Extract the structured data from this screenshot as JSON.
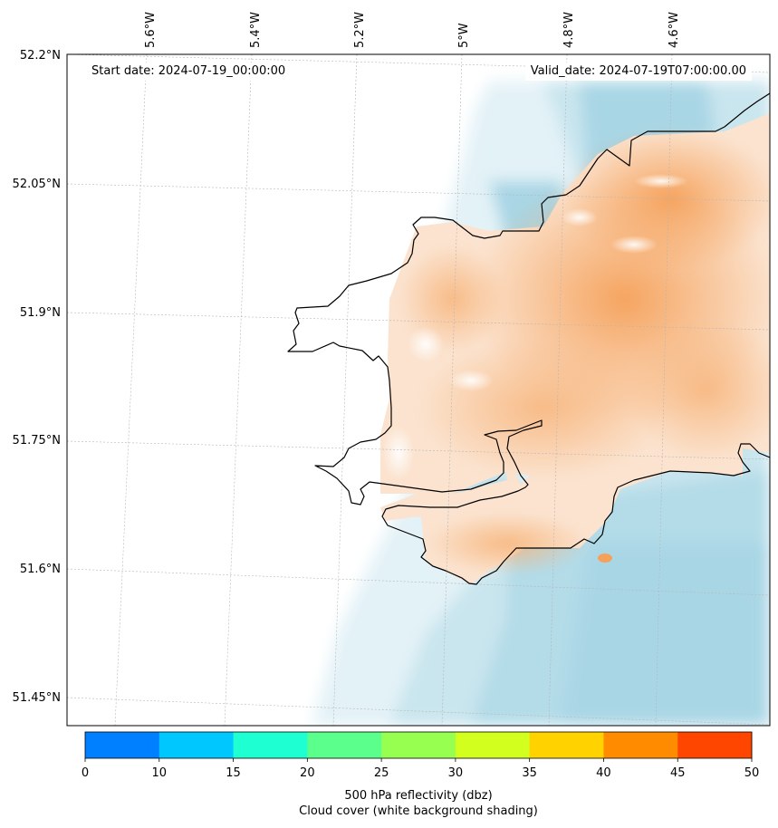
{
  "header": {
    "start_date": "Start date: 2024-07-19_00:00:00",
    "valid_date": "Valid_date: 2024-07-19T07:00:00.00"
  },
  "axes": {
    "lon_labels": [
      "5.6°W",
      "5.4°W",
      "5.2°W",
      "5°W",
      "4.8°W",
      "4.6°W"
    ],
    "lat_labels": [
      "52.2°N",
      "52.05°N",
      "51.9°N",
      "51.75°N",
      "51.6°N",
      "51.45°N"
    ]
  },
  "colorbar": {
    "ticks": [
      "0",
      "10",
      "15",
      "20",
      "25",
      "30",
      "35",
      "40",
      "45",
      "50"
    ],
    "colors": [
      "#0080ff",
      "#00c8ff",
      "#1effd2",
      "#5aff8c",
      "#96ff50",
      "#d2ff1e",
      "#ffd200",
      "#ff8c00",
      "#ff4600"
    ],
    "label": "500 hPa reflectivity (dbz)",
    "sublabel": "Cloud cover (white background shading)"
  },
  "legend_colors": {
    "cloud_cover": "#a9d6e5",
    "land_shading": "#f5a15a",
    "coastline": "#000000"
  }
}
